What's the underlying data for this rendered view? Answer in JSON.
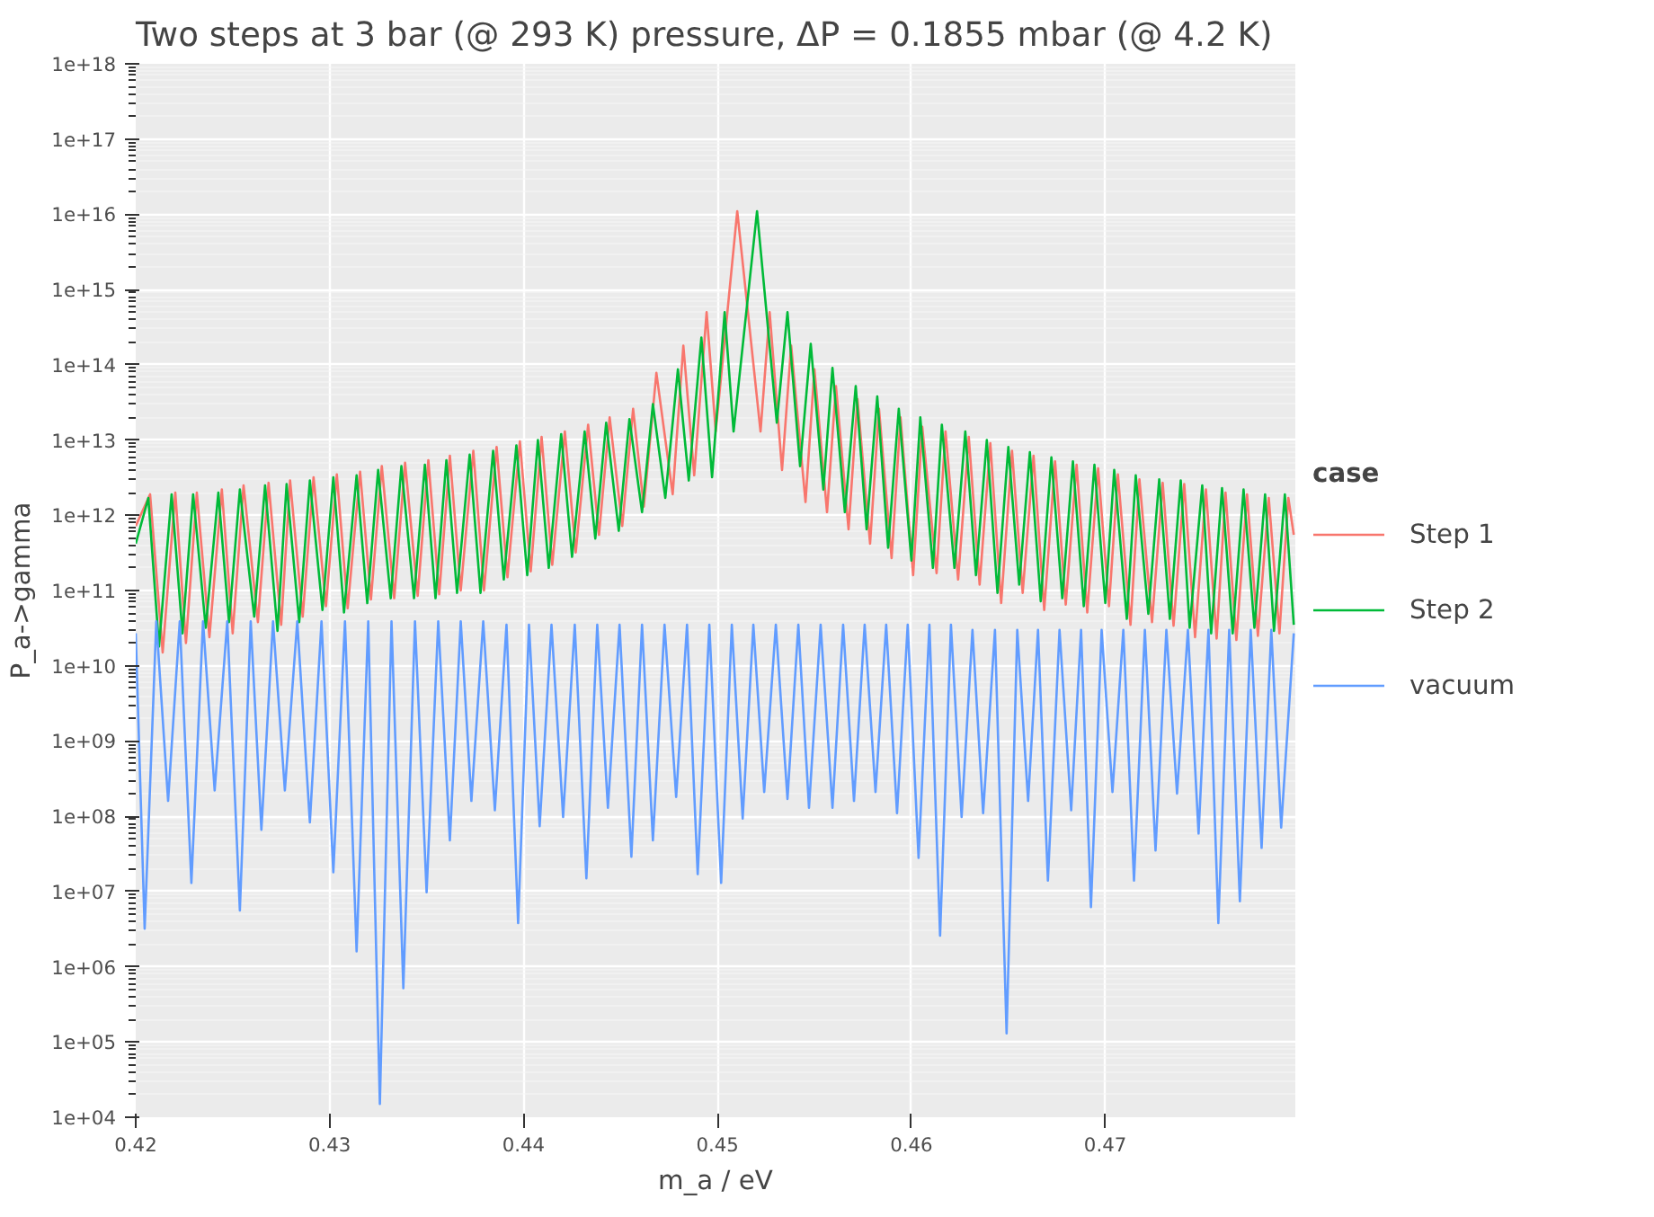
{
  "chart_data": {
    "type": "line",
    "title": "Two steps at 3 bar (@ 293 K) pressure, ΔP = 0.1855 mbar (@ 4.2 K)",
    "xlabel": "m_a / eV",
    "ylabel": "P_a->gamma",
    "legend_title": "case",
    "legend": "right",
    "grid": true,
    "log": "y",
    "marker": "none",
    "line_style": "solid",
    "xlim": [
      0.42,
      0.4798
    ],
    "xticks": [
      0.42,
      0.43,
      0.44,
      0.45,
      0.46,
      0.47
    ],
    "ylim": [
      10000.0,
      1e+18
    ],
    "yticks": [
      {
        "value": 10000.0,
        "label": "1e+04"
      },
      {
        "value": 100000.0,
        "label": "1e+05"
      },
      {
        "value": 1000000.0,
        "label": "1e+06"
      },
      {
        "value": 10000000.0,
        "label": "1e+07"
      },
      {
        "value": 100000000.0,
        "label": "1e+08"
      },
      {
        "value": 1000000000.0,
        "label": "1e+09"
      },
      {
        "value": 10000000000.0,
        "label": "1e+10"
      },
      {
        "value": 100000000000.0,
        "label": "1e+11"
      },
      {
        "value": 1000000000000.0,
        "label": "1e+12"
      },
      {
        "value": 10000000000000.0,
        "label": "1e+13"
      },
      {
        "value": 100000000000000.0,
        "label": "1e+14"
      },
      {
        "value": 1000000000000000.0,
        "label": "1e+15"
      },
      {
        "value": 1e+16,
        "label": "1e+16"
      },
      {
        "value": 1e+17,
        "label": "1e+17"
      },
      {
        "value": 1e+18,
        "label": "1e+18"
      }
    ],
    "series": [
      {
        "name": "Step 1",
        "color": "#f8766d",
        "x": [
          0.42,
          0.42074,
          0.42139,
          0.42204,
          0.42259,
          0.42315,
          0.4238,
          0.42444,
          0.425,
          0.42556,
          0.4263,
          0.42685,
          0.4275,
          0.42796,
          0.42861,
          0.42917,
          0.42981,
          0.43037,
          0.43093,
          0.43157,
          0.43213,
          0.43269,
          0.43333,
          0.43389,
          0.43454,
          0.43509,
          0.43565,
          0.4362,
          0.43676,
          0.43741,
          0.43796,
          0.43861,
          0.43917,
          0.43981,
          0.44037,
          0.44093,
          0.44148,
          0.44213,
          0.44269,
          0.44333,
          0.44389,
          0.44444,
          0.44509,
          0.44565,
          0.4462,
          0.44685,
          0.44769,
          0.44824,
          0.4488,
          0.44944,
          0.44991,
          0.45102,
          0.45222,
          0.45269,
          0.45333,
          0.4538,
          0.45454,
          0.455,
          0.45565,
          0.45611,
          0.45676,
          0.45722,
          0.45787,
          0.45833,
          0.45898,
          0.45944,
          0.46009,
          0.46056,
          0.4613,
          0.46176,
          0.46241,
          0.46296,
          0.46352,
          0.46407,
          0.46463,
          0.46519,
          0.46574,
          0.4663,
          0.46685,
          0.46741,
          0.46796,
          0.46852,
          0.46907,
          0.46963,
          0.47019,
          0.47065,
          0.4713,
          0.47176,
          0.47241,
          0.47296,
          0.47352,
          0.47407,
          0.47463,
          0.47519,
          0.47574,
          0.4762,
          0.47676,
          0.47731,
          0.47787,
          0.47843,
          0.47898,
          0.47944,
          0.47972
        ],
        "values": [
          720000000000.0,
          1900000000000.0,
          15000000000.0,
          2000000000000.0,
          20000000000.0,
          2000000000000.0,
          24000000000.0,
          2200000000000.0,
          27000000000.0,
          2500000000000.0,
          38000000000.0,
          2700000000000.0,
          35000000000.0,
          2900000000000.0,
          45000000000.0,
          3200000000000.0,
          62000000000.0,
          3500000000000.0,
          58000000000.0,
          3800000000000.0,
          76000000000.0,
          4500000000000.0,
          79000000000.0,
          5000000000000.0,
          85000000000.0,
          5400000000000.0,
          89000000000.0,
          6200000000000.0,
          100000000000.0,
          7200000000000.0,
          100000000000.0,
          8100000000000.0,
          150000000000.0,
          9600000000000.0,
          180000000000.0,
          11000000000000.0,
          220000000000.0,
          13000000000000.0,
          320000000000.0,
          16000000000000.0,
          550000000000.0,
          20000000000000.0,
          720000000000.0,
          26000000000000.0,
          1300000000000.0,
          78000000000000.0,
          1900000000000.0,
          180000000000000.0,
          3400000000000.0,
          500000000000000.0,
          13000000000000.0,
          1.1e+16,
          13000000000000.0,
          500000000000000.0,
          4000000000000.0,
          180000000000000.0,
          1500000000000.0,
          87000000000000.0,
          1100000000000.0,
          52000000000000.0,
          650000000000.0,
          35000000000000.0,
          420000000000.0,
          26000000000000.0,
          270000000000.0,
          20000000000000.0,
          160000000000.0,
          15000000000000.0,
          170000000000.0,
          13000000000000.0,
          140000000000.0,
          11000000000000.0,
          120000000000.0,
          9100000000000.0,
          68000000000.0,
          7200000000000.0,
          93000000000.0,
          6200000000000.0,
          55000000000.0,
          5200000000000.0,
          65000000000.0,
          4700000000000.0,
          51000000000.0,
          4200000000000.0,
          62000000000.0,
          3500000000000.0,
          35000000000.0,
          3000000000000.0,
          38000000000.0,
          2700000000000.0,
          34000000000.0,
          2600000000000.0,
          24000000000.0,
          2200000000000.0,
          23000000000.0,
          2000000000000.0,
          22000000000.0,
          1900000000000.0,
          25000000000.0,
          1700000000000.0,
          27000000000.0,
          1700000000000.0,
          550000000000.0
        ]
      },
      {
        "name": "Step 2",
        "color": "#00ba38",
        "x": [
          0.42,
          0.42065,
          0.4212,
          0.42185,
          0.42241,
          0.42296,
          0.42361,
          0.42426,
          0.42481,
          0.42537,
          0.42611,
          0.42667,
          0.42731,
          0.42778,
          0.42843,
          0.42898,
          0.42963,
          0.43019,
          0.43074,
          0.43139,
          0.43194,
          0.4325,
          0.43315,
          0.4337,
          0.43435,
          0.43491,
          0.43546,
          0.43602,
          0.43657,
          0.43722,
          0.43778,
          0.43843,
          0.43898,
          0.43963,
          0.44019,
          0.44074,
          0.4413,
          0.44194,
          0.4425,
          0.44315,
          0.4437,
          0.44426,
          0.44491,
          0.44546,
          0.44611,
          0.44667,
          0.44731,
          0.44796,
          0.44852,
          0.44917,
          0.44972,
          0.45037,
          0.45083,
          0.45204,
          0.45306,
          0.45361,
          0.45426,
          0.45481,
          0.45546,
          0.45593,
          0.45657,
          0.45713,
          0.45769,
          0.45824,
          0.4588,
          0.45935,
          0.46,
          0.46046,
          0.46111,
          0.46157,
          0.46222,
          0.46278,
          0.46333,
          0.46389,
          0.46444,
          0.465,
          0.46556,
          0.46611,
          0.46667,
          0.46722,
          0.46778,
          0.46833,
          0.46889,
          0.46944,
          0.47,
          0.47046,
          0.47111,
          0.47157,
          0.47222,
          0.47278,
          0.47333,
          0.47389,
          0.47435,
          0.475,
          0.47546,
          0.47602,
          0.47657,
          0.47713,
          0.47769,
          0.47824,
          0.4787,
          0.47926,
          0.47972
        ],
        "values": [
          420000000000.0,
          1700000000000.0,
          18000000000.0,
          1900000000000.0,
          27000000000.0,
          1900000000000.0,
          32000000000.0,
          2000000000000.0,
          38000000000.0,
          2200000000000.0,
          45000000000.0,
          2500000000000.0,
          29000000000.0,
          2600000000000.0,
          38000000000.0,
          2900000000000.0,
          55000000000.0,
          3200000000000.0,
          51000000000.0,
          3400000000000.0,
          68000000000.0,
          4000000000000.0,
          79000000000.0,
          4500000000000.0,
          79000000000.0,
          4700000000000.0,
          79000000000.0,
          5400000000000.0,
          93000000000.0,
          6400000000000.0,
          93000000000.0,
          7200000000000.0,
          140000000000.0,
          8500000000000.0,
          160000000000.0,
          10000000000000.0,
          200000000000.0,
          12000000000000.0,
          280000000000.0,
          13000000000000.0,
          490000000000.0,
          17000000000000.0,
          620000000000.0,
          19000000000000.0,
          1100000000000.0,
          30000000000000.0,
          1700000000000.0,
          87000000000000.0,
          2900000000000.0,
          230000000000000.0,
          3200000000000.0,
          500000000000000.0,
          13000000000000.0,
          1.1e+16,
          17000000000000.0,
          500000000000000.0,
          4500000000000.0,
          190000000000000.0,
          2200000000000.0,
          91000000000000.0,
          1100000000000.0,
          52000000000000.0,
          650000000000.0,
          38000000000000.0,
          370000000000.0,
          26000000000000.0,
          250000000000.0,
          20000000000000.0,
          200000000000.0,
          16000000000000.0,
          200000000000.0,
          13000000000000.0,
          160000000000.0,
          10000000000000.0,
          93000000000.0,
          8100000000000.0,
          120000000000.0,
          6900000000000.0,
          72000000000.0,
          5900000000000.0,
          79000000000.0,
          5200000000000.0,
          62000000000.0,
          4700000000000.0,
          68000000000.0,
          4000000000000.0,
          42000000000.0,
          3400000000000.0,
          49000000000.0,
          3000000000000.0,
          42000000000.0,
          2900000000000.0,
          32000000000.0,
          2500000000000.0,
          27000000000.0,
          2300000000000.0,
          27000000000.0,
          2200000000000.0,
          32000000000.0,
          1900000000000.0,
          29000000000.0,
          1900000000000.0,
          35000000000.0
        ]
      },
      {
        "name": "vacuum",
        "color": "#619cff",
        "x": [
          0.42,
          0.42046,
          0.42106,
          0.42167,
          0.42227,
          0.42287,
          0.42347,
          0.42407,
          0.42472,
          0.42537,
          0.42593,
          0.42648,
          0.42708,
          0.42769,
          0.42833,
          0.42898,
          0.42958,
          0.43019,
          0.43079,
          0.43139,
          0.43199,
          0.43259,
          0.43319,
          0.4338,
          0.4344,
          0.435,
          0.4356,
          0.4362,
          0.43676,
          0.43731,
          0.43792,
          0.43852,
          0.43912,
          0.43972,
          0.44028,
          0.44083,
          0.44144,
          0.44204,
          0.44264,
          0.44324,
          0.4438,
          0.44435,
          0.44495,
          0.44556,
          0.44611,
          0.44667,
          0.44727,
          0.44787,
          0.44843,
          0.44898,
          0.44958,
          0.45019,
          0.45074,
          0.4513,
          0.45185,
          0.45241,
          0.45301,
          0.45361,
          0.45417,
          0.45472,
          0.45532,
          0.45593,
          0.45648,
          0.45704,
          0.45759,
          0.45815,
          0.4587,
          0.45926,
          0.45981,
          0.46037,
          0.46093,
          0.46148,
          0.46204,
          0.46259,
          0.46315,
          0.4637,
          0.46431,
          0.46491,
          0.46546,
          0.46602,
          0.46653,
          0.46704,
          0.46764,
          0.46824,
          0.46875,
          0.46926,
          0.46981,
          0.47037,
          0.47093,
          0.47148,
          0.47204,
          0.47259,
          0.47315,
          0.4737,
          0.47426,
          0.47481,
          0.47532,
          0.47583,
          0.47639,
          0.47694,
          0.4775,
          0.47806,
          0.47856,
          0.47907,
          0.47972
        ],
        "values": [
          27000000000.0,
          3200000.0,
          39000000000.0,
          160000000.0,
          39000000000.0,
          13000000.0,
          39000000000.0,
          220000000.0,
          39000000000.0,
          5600000.0,
          39000000000.0,
          66000000.0,
          39000000000.0,
          220000000.0,
          39000000000.0,
          83000000.0,
          39000000000.0,
          18000000.0,
          39000000000.0,
          1600000.0,
          39000000000.0,
          15000.0,
          39000000000.0,
          520000.0,
          39000000000.0,
          9800000.0,
          39000000000.0,
          48000000.0,
          39000000000.0,
          160000000.0,
          39000000000.0,
          120000000.0,
          35000000000.0,
          3800000.0,
          35000000000.0,
          74000000.0,
          35000000000.0,
          98000000.0,
          35000000000.0,
          15000000.0,
          35000000000.0,
          130000000.0,
          35000000000.0,
          29000000.0,
          35000000000.0,
          48000000.0,
          35000000000.0,
          180000000.0,
          35000000000.0,
          17000000.0,
          35000000000.0,
          13000000.0,
          35000000000.0,
          93000000.0,
          35000000000.0,
          210000000.0,
          35000000000.0,
          170000000.0,
          35000000000.0,
          130000000.0,
          35000000000.0,
          130000000.0,
          35000000000.0,
          160000000.0,
          35000000000.0,
          210000000.0,
          35000000000.0,
          110000000.0,
          35000000000.0,
          28000000.0,
          35000000000.0,
          2600000.0,
          35000000000.0,
          98000000.0,
          30000000000.0,
          110000000.0,
          30000000000.0,
          130000.0,
          30000000000.0,
          160000000.0,
          30000000000.0,
          14000000.0,
          30000000000.0,
          120000000.0,
          30000000000.0,
          6200000.0,
          30000000000.0,
          210000000.0,
          30000000000.0,
          14000000.0,
          30000000000.0,
          35000000.0,
          30000000000.0,
          200000000.0,
          30000000000.0,
          59000000.0,
          30000000000.0,
          3800000.0,
          30000000000.0,
          7400000.0,
          30000000000.0,
          38000000.0,
          30000000000.0,
          71000000.0,
          27000000000.0
        ]
      }
    ]
  }
}
